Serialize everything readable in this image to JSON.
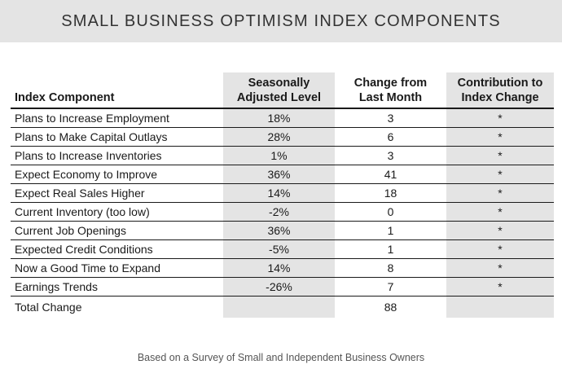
{
  "title": "SMALL BUSINESS OPTIMISM INDEX COMPONENTS",
  "headers": {
    "component": "Index Component",
    "level_line1": "Seasonally",
    "level_line2": "Adjusted Level",
    "change_line1": "Change from",
    "change_line2": "Last Month",
    "contribution_line1": "Contribution to",
    "contribution_line2": "Index Change"
  },
  "rows": [
    {
      "component": "Plans to Increase Employment",
      "level": "18%",
      "change": "3",
      "contribution": "*"
    },
    {
      "component": "Plans to Make Capital Outlays",
      "level": "28%",
      "change": "6",
      "contribution": "*"
    },
    {
      "component": "Plans to Increase Inventories",
      "level": "1%",
      "change": "3",
      "contribution": "*"
    },
    {
      "component": "Expect Economy to Improve",
      "level": "36%",
      "change": "41",
      "contribution": "*"
    },
    {
      "component": "Expect Real Sales Higher",
      "level": "14%",
      "change": "18",
      "contribution": "*"
    },
    {
      "component": "Current Inventory (too low)",
      "level": "-2%",
      "change": "0",
      "contribution": "*"
    },
    {
      "component": "Current Job Openings",
      "level": "36%",
      "change": "1",
      "contribution": "*"
    },
    {
      "component": "Expected Credit Conditions",
      "level": "-5%",
      "change": "1",
      "contribution": "*"
    },
    {
      "component": "Now a Good Time to Expand",
      "level": "14%",
      "change": "8",
      "contribution": "*"
    },
    {
      "component": "Earnings Trends",
      "level": "-26%",
      "change": "7",
      "contribution": "*"
    }
  ],
  "total": {
    "label": "Total Change",
    "change": "88"
  },
  "footnote": "Based on a Survey of Small and Independent Business Owners",
  "colors": {
    "shade": "#e4e4e4",
    "text": "#1a1a1a"
  }
}
